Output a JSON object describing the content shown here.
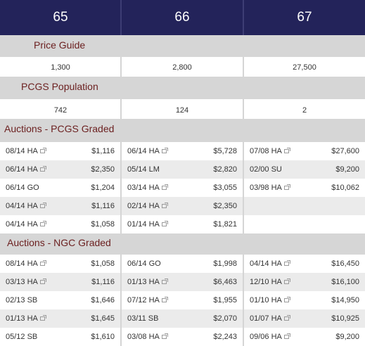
{
  "grades": [
    "65",
    "66",
    "67"
  ],
  "price_guide": {
    "label": "Price Guide",
    "values": [
      "1,300",
      "2,800",
      "27,500"
    ]
  },
  "pcgs_population": {
    "label": "PCGS Population",
    "values": [
      "742",
      "124",
      "2"
    ]
  },
  "auctions_pcgs": {
    "label": "Auctions - PCGS Graded",
    "columns": [
      [
        {
          "date": "08/14",
          "house": "HA",
          "link": true,
          "price": "$1,116"
        },
        {
          "date": "06/14",
          "house": "HA",
          "link": true,
          "price": "$2,350"
        },
        {
          "date": "06/14",
          "house": "GO",
          "link": false,
          "price": "$1,204"
        },
        {
          "date": "04/14",
          "house": "HA",
          "link": true,
          "price": "$1,116"
        },
        {
          "date": "04/14",
          "house": "HA",
          "link": true,
          "price": "$1,058"
        }
      ],
      [
        {
          "date": "06/14",
          "house": "HA",
          "link": true,
          "price": "$5,728"
        },
        {
          "date": "05/14",
          "house": "LM",
          "link": false,
          "price": "$2,820"
        },
        {
          "date": "03/14",
          "house": "HA",
          "link": true,
          "price": "$3,055"
        },
        {
          "date": "02/14",
          "house": "HA",
          "link": true,
          "price": "$2,350"
        },
        {
          "date": "01/14",
          "house": "HA",
          "link": true,
          "price": "$1,821"
        }
      ],
      [
        {
          "date": "07/08",
          "house": "HA",
          "link": true,
          "price": "$27,600"
        },
        {
          "date": "02/00",
          "house": "SU",
          "link": false,
          "price": "$9,200"
        },
        {
          "date": "03/98",
          "house": "HA",
          "link": true,
          "price": "$10,062"
        }
      ]
    ]
  },
  "auctions_ngc": {
    "label": "Auctions - NGC Graded",
    "columns": [
      [
        {
          "date": "08/14",
          "house": "HA",
          "link": true,
          "price": "$1,058"
        },
        {
          "date": "03/13",
          "house": "HA",
          "link": true,
          "price": "$1,116"
        },
        {
          "date": "02/13",
          "house": "SB",
          "link": false,
          "price": "$1,646"
        },
        {
          "date": "01/13",
          "house": "HA",
          "link": true,
          "price": "$1,645"
        },
        {
          "date": "05/12",
          "house": "SB",
          "link": false,
          "price": "$1,610"
        }
      ],
      [
        {
          "date": "06/14",
          "house": "GO",
          "link": false,
          "price": "$1,998"
        },
        {
          "date": "01/13",
          "house": "HA",
          "link": true,
          "price": "$6,463"
        },
        {
          "date": "07/12",
          "house": "HA",
          "link": true,
          "price": "$1,955"
        },
        {
          "date": "03/11",
          "house": "SB",
          "link": false,
          "price": "$2,070"
        },
        {
          "date": "03/08",
          "house": "HA",
          "link": true,
          "price": "$2,243"
        }
      ],
      [
        {
          "date": "04/14",
          "house": "HA",
          "link": true,
          "price": "$16,450"
        },
        {
          "date": "12/10",
          "house": "HA",
          "link": true,
          "price": "$16,100"
        },
        {
          "date": "01/10",
          "house": "HA",
          "link": true,
          "price": "$14,950"
        },
        {
          "date": "01/07",
          "house": "HA",
          "link": true,
          "price": "$10,925"
        },
        {
          "date": "09/06",
          "house": "HA",
          "link": true,
          "price": "$9,200"
        }
      ]
    ]
  }
}
